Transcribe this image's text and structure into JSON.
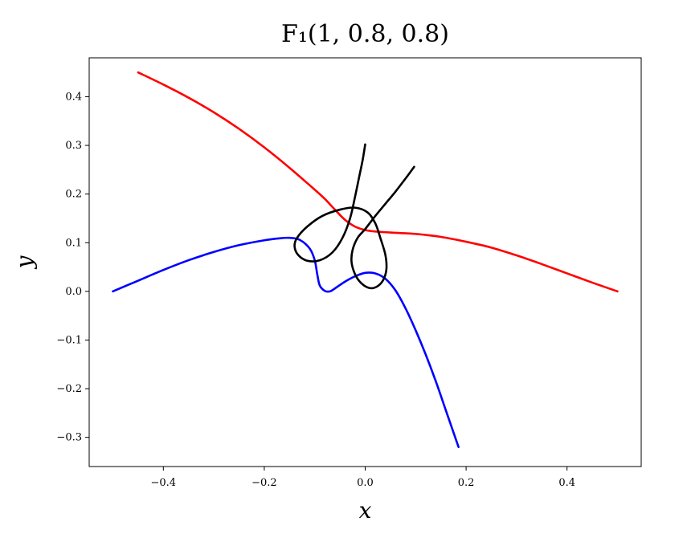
{
  "chart_data": {
    "type": "line",
    "title": "F₁(1, 0.8, 0.8)",
    "xlabel": "x",
    "ylabel": "y",
    "xlim": [
      -0.547,
      0.547
    ],
    "ylim": [
      -0.36,
      0.48
    ],
    "x_ticks": [
      -0.4,
      -0.2,
      0.0,
      0.2,
      0.4
    ],
    "x_tick_labels": [
      "−0.4",
      "−0.2",
      "0.0",
      "0.2",
      "0.4"
    ],
    "y_ticks": [
      -0.3,
      -0.2,
      -0.1,
      0.0,
      0.1,
      0.2,
      0.3,
      0.4
    ],
    "y_tick_labels": [
      "−0.3",
      "−0.2",
      "−0.1",
      "0.0",
      "0.1",
      "0.2",
      "0.3",
      "0.4"
    ],
    "grid": false,
    "legend": "none",
    "series": [
      {
        "color": "#ff0000",
        "points": [
          [
            -0.45,
            0.45
          ],
          [
            -0.4,
            0.425
          ],
          [
            -0.35,
            0.398
          ],
          [
            -0.3,
            0.368
          ],
          [
            -0.25,
            0.334
          ],
          [
            -0.2,
            0.296
          ],
          [
            -0.15,
            0.254
          ],
          [
            -0.1,
            0.209
          ],
          [
            -0.08,
            0.19
          ],
          [
            -0.06,
            0.168
          ],
          [
            -0.04,
            0.147
          ],
          [
            -0.02,
            0.133
          ],
          [
            0.0,
            0.126
          ],
          [
            0.02,
            0.123
          ],
          [
            0.05,
            0.121
          ],
          [
            0.1,
            0.118
          ],
          [
            0.15,
            0.112
          ],
          [
            0.2,
            0.102
          ],
          [
            0.25,
            0.09
          ],
          [
            0.3,
            0.074
          ],
          [
            0.35,
            0.056
          ],
          [
            0.4,
            0.037
          ],
          [
            0.45,
            0.018
          ],
          [
            0.5,
            0.0
          ]
        ]
      },
      {
        "color": "#0000ff",
        "points": [
          [
            -0.5,
            0.0
          ],
          [
            -0.45,
            0.022
          ],
          [
            -0.4,
            0.044
          ],
          [
            -0.35,
            0.064
          ],
          [
            -0.3,
            0.081
          ],
          [
            -0.25,
            0.095
          ],
          [
            -0.2,
            0.105
          ],
          [
            -0.17,
            0.109
          ],
          [
            -0.15,
            0.11
          ],
          [
            -0.13,
            0.106
          ],
          [
            -0.11,
            0.088
          ],
          [
            -0.1,
            0.064
          ],
          [
            -0.095,
            0.035
          ],
          [
            -0.09,
            0.012
          ],
          [
            -0.08,
            0.001
          ],
          [
            -0.07,
            0.0
          ],
          [
            -0.06,
            0.006
          ],
          [
            -0.04,
            0.02
          ],
          [
            -0.02,
            0.031
          ],
          [
            0.0,
            0.038
          ],
          [
            0.02,
            0.037
          ],
          [
            0.04,
            0.026
          ],
          [
            0.06,
            0.002
          ],
          [
            0.08,
            -0.035
          ],
          [
            0.1,
            -0.08
          ],
          [
            0.12,
            -0.13
          ],
          [
            0.14,
            -0.185
          ],
          [
            0.16,
            -0.245
          ],
          [
            0.175,
            -0.29
          ],
          [
            0.185,
            -0.32
          ]
        ]
      },
      {
        "color": "#000000",
        "points": [
          [
            0.0,
            0.302
          ],
          [
            -0.005,
            0.27
          ],
          [
            -0.012,
            0.235
          ],
          [
            -0.02,
            0.195
          ],
          [
            -0.03,
            0.15
          ],
          [
            -0.045,
            0.11
          ],
          [
            -0.065,
            0.08
          ],
          [
            -0.09,
            0.064
          ],
          [
            -0.115,
            0.063
          ],
          [
            -0.133,
            0.075
          ],
          [
            -0.14,
            0.093
          ],
          [
            -0.135,
            0.11
          ],
          [
            -0.115,
            0.133
          ],
          [
            -0.085,
            0.155
          ],
          [
            -0.05,
            0.168
          ],
          [
            -0.02,
            0.172
          ],
          [
            0.005,
            0.162
          ],
          [
            0.02,
            0.14
          ],
          [
            0.03,
            0.11
          ],
          [
            0.04,
            0.075
          ],
          [
            0.042,
            0.045
          ],
          [
            0.035,
            0.022
          ],
          [
            0.022,
            0.009
          ],
          [
            0.008,
            0.007
          ],
          [
            -0.008,
            0.017
          ],
          [
            -0.02,
            0.035
          ],
          [
            -0.027,
            0.06
          ],
          [
            -0.025,
            0.085
          ],
          [
            -0.015,
            0.11
          ],
          [
            0.0,
            0.128
          ],
          [
            0.02,
            0.155
          ],
          [
            0.04,
            0.18
          ],
          [
            0.06,
            0.205
          ],
          [
            0.08,
            0.232
          ],
          [
            0.097,
            0.256
          ]
        ]
      }
    ]
  }
}
